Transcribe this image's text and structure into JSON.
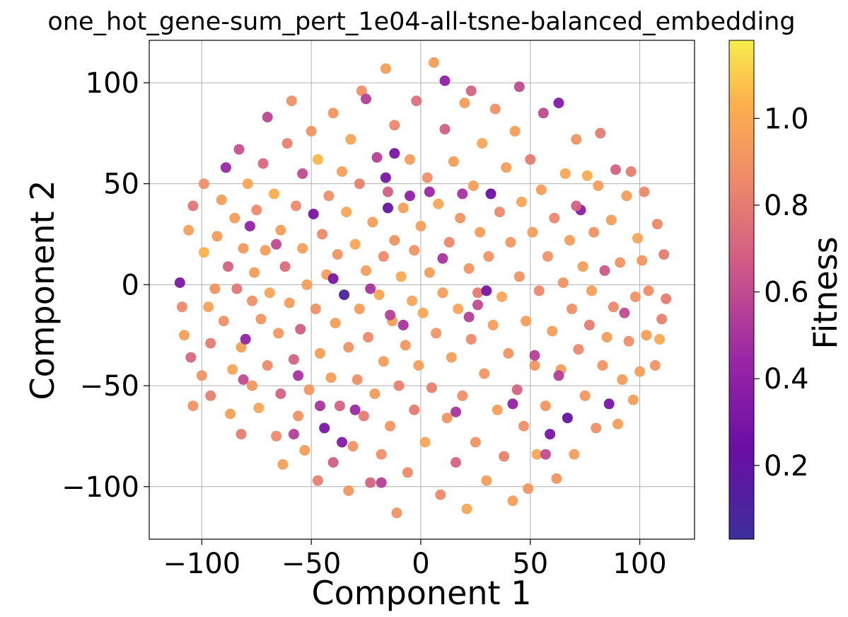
{
  "chart_data": {
    "type": "scatter",
    "title": "one_hot_gene-sum_pert_1e04-all-tsne-balanced_embedding",
    "xlabel": "Component 1",
    "ylabel": "Component 2",
    "xlim": [
      -124,
      125
    ],
    "ylim": [
      -126,
      121
    ],
    "xticks": [
      -100,
      -50,
      0,
      50,
      100
    ],
    "xtick_labels": [
      "−100",
      "−50",
      "0",
      "50",
      "100"
    ],
    "yticks": [
      -100,
      -50,
      0,
      50,
      100
    ],
    "ytick_labels": [
      "−100",
      "−50",
      "0",
      "50",
      "100"
    ],
    "grid": true,
    "colormap": "plasma",
    "color_range": [
      0.03,
      1.18
    ],
    "colorbar": {
      "label": "Fitness",
      "ticks": [
        0.2,
        0.4,
        0.6,
        0.8,
        1.0
      ],
      "tick_labels": [
        "0.2",
        "0.4",
        "0.6",
        "0.8",
        "1.0"
      ]
    },
    "points": [
      [
        -110,
        1,
        0.32
      ],
      [
        -109,
        -11,
        0.85
      ],
      [
        -108,
        -25,
        0.96
      ],
      [
        -105,
        -36,
        0.72
      ],
      [
        -104,
        -60,
        0.9
      ],
      [
        -106,
        27,
        0.96
      ],
      [
        -104,
        39,
        0.78
      ],
      [
        -100,
        -45,
        0.9
      ],
      [
        -99,
        16,
        1.04
      ],
      [
        -99,
        50,
        0.88
      ],
      [
        -97,
        -11,
        0.97
      ],
      [
        -96,
        -29,
        0.8
      ],
      [
        -96,
        -55,
        0.82
      ],
      [
        -94,
        -2,
        0.9
      ],
      [
        -93,
        24,
        0.95
      ],
      [
        -91,
        42,
        0.95
      ],
      [
        -90,
        -18,
        0.88
      ],
      [
        -89,
        58,
        0.45
      ],
      [
        -88,
        9,
        0.7
      ],
      [
        -87,
        -64,
        0.96
      ],
      [
        -86,
        -42,
        0.98
      ],
      [
        -85,
        33,
        0.95
      ],
      [
        -84,
        -2,
        0.78
      ],
      [
        -83,
        67,
        0.62
      ],
      [
        -82,
        -31,
        0.96
      ],
      [
        -82,
        -74,
        0.8
      ],
      [
        -81,
        18,
        0.93
      ],
      [
        -80,
        -27,
        0.42
      ],
      [
        -79,
        50,
        0.98
      ],
      [
        -78,
        29,
        0.42
      ],
      [
        -77,
        -8,
        0.88
      ],
      [
        -77,
        -50,
        0.92
      ],
      [
        -76,
        6,
        0.95
      ],
      [
        -75,
        37,
        0.86
      ],
      [
        -74,
        -61,
        0.98
      ],
      [
        -73,
        -17,
        0.92
      ],
      [
        -72,
        60,
        0.72
      ],
      [
        -71,
        17,
        0.95
      ],
      [
        -70,
        -40,
        0.86
      ],
      [
        -70,
        83,
        0.58
      ],
      [
        -69,
        -4,
        0.98
      ],
      [
        -67,
        45,
        1.02
      ],
      [
        -66,
        -75,
        0.85
      ],
      [
        -65,
        -24,
        0.92
      ],
      [
        -64,
        27,
        0.95
      ],
      [
        -64,
        -54,
        0.7
      ],
      [
        -63,
        -89,
        0.96
      ],
      [
        -62,
        9,
        0.74
      ],
      [
        -61,
        70,
        0.82
      ],
      [
        -60,
        -9,
        0.95
      ],
      [
        -59,
        91,
        0.88
      ],
      [
        -58,
        -37,
        0.7
      ],
      [
        -57,
        39,
        0.86
      ],
      [
        -56,
        -65,
        0.9
      ],
      [
        -55,
        -22,
        0.68
      ],
      [
        -54,
        55,
        0.6
      ],
      [
        -54,
        18,
        0.96
      ],
      [
        -53,
        -82,
        0.95
      ],
      [
        -52,
        0,
        0.95
      ],
      [
        -51,
        -52,
        0.92
      ],
      [
        -50,
        76,
        0.9
      ],
      [
        -49,
        35,
        0.3
      ],
      [
        -48,
        -12,
        0.88
      ],
      [
        -47,
        -97,
        0.82
      ],
      [
        -47,
        62,
        1.05
      ],
      [
        -46,
        -34,
        0.95
      ],
      [
        -45,
        25,
        0.85
      ],
      [
        -44,
        -71,
        0.3
      ],
      [
        -43,
        5,
        0.95
      ],
      [
        -42,
        44,
        0.88
      ],
      [
        -41,
        -46,
        0.95
      ],
      [
        -40,
        -88,
        0.68
      ],
      [
        -40,
        85,
        0.92
      ],
      [
        -39,
        -19,
        0.95
      ],
      [
        -38,
        15,
        0.9
      ],
      [
        -37,
        -60,
        0.7
      ],
      [
        -36,
        56,
        0.95
      ],
      [
        -35,
        -5,
        0.1
      ],
      [
        -34,
        36,
        0.98
      ],
      [
        -33,
        -31,
        0.9
      ],
      [
        -33,
        -102,
        0.92
      ],
      [
        -32,
        72,
        0.98
      ],
      [
        -31,
        -80,
        0.9
      ],
      [
        -30,
        20,
        0.98
      ],
      [
        -29,
        -47,
        0.88
      ],
      [
        -28,
        -12,
        0.95
      ],
      [
        -28,
        50,
        0.82
      ],
      [
        -27,
        96,
        0.88
      ],
      [
        -26,
        -65,
        0.8
      ],
      [
        -25,
        7,
        0.95
      ],
      [
        -24,
        -26,
        0.86
      ],
      [
        -23,
        -98,
        0.7
      ],
      [
        -22,
        31,
        0.96
      ],
      [
        -21,
        -54,
        0.94
      ],
      [
        -20,
        63,
        0.55
      ],
      [
        -19,
        -5,
        0.98
      ],
      [
        -18,
        -84,
        0.88
      ],
      [
        -17,
        14,
        0.86
      ],
      [
        -17,
        -38,
        0.95
      ],
      [
        -16,
        107,
        0.95
      ],
      [
        -15,
        46,
        0.68
      ],
      [
        -14,
        -70,
        0.92
      ],
      [
        -13,
        -18,
        0.95
      ],
      [
        -12,
        22,
        0.9
      ],
      [
        -12,
        79,
        0.85
      ],
      [
        -11,
        -113,
        0.9
      ],
      [
        -10,
        -50,
        0.82
      ],
      [
        -9,
        4,
        1.0
      ],
      [
        -8,
        38,
        0.95
      ],
      [
        -7,
        -30,
        0.92
      ],
      [
        -6,
        -93,
        0.86
      ],
      [
        -5,
        62,
        0.95
      ],
      [
        -4,
        -8,
        0.98
      ],
      [
        -3,
        17,
        0.9
      ],
      [
        -3,
        -62,
        0.8
      ],
      [
        -2,
        91,
        0.75
      ],
      [
        -1,
        -40,
        0.95
      ],
      [
        0,
        29,
        0.95
      ],
      [
        1,
        -14,
        0.98
      ],
      [
        2,
        -78,
        0.98
      ],
      [
        3,
        53,
        0.88
      ],
      [
        4,
        6,
        0.95
      ],
      [
        5,
        -51,
        0.82
      ],
      [
        6,
        110,
        0.95
      ],
      [
        7,
        -24,
        0.9
      ],
      [
        8,
        40,
        0.98
      ],
      [
        9,
        -104,
        0.85
      ],
      [
        10,
        -4,
        0.95
      ],
      [
        11,
        77,
        0.68
      ],
      [
        12,
        -66,
        0.9
      ],
      [
        13,
        21,
        0.85
      ],
      [
        14,
        -36,
        0.95
      ],
      [
        15,
        61,
        0.95
      ],
      [
        16,
        -88,
        0.7
      ],
      [
        17,
        -12,
        0.98
      ],
      [
        18,
        33,
        0.9
      ],
      [
        19,
        -55,
        0.88
      ],
      [
        20,
        90,
        0.95
      ],
      [
        21,
        -111,
        0.98
      ],
      [
        22,
        8,
        0.92
      ],
      [
        23,
        -27,
        0.86
      ],
      [
        24,
        49,
        0.95
      ],
      [
        25,
        -78,
        0.9
      ],
      [
        26,
        -4,
        0.8
      ],
      [
        27,
        26,
        0.95
      ],
      [
        28,
        70,
        0.98
      ],
      [
        29,
        -44,
        0.92
      ],
      [
        30,
        -97,
        0.95
      ],
      [
        31,
        14,
        0.9
      ],
      [
        32,
        45,
        0.25
      ],
      [
        33,
        -20,
        0.95
      ],
      [
        34,
        87,
        0.88
      ],
      [
        35,
        -62,
        0.95
      ],
      [
        36,
        36,
        0.85
      ],
      [
        37,
        -6,
        0.98
      ],
      [
        38,
        -85,
        0.82
      ],
      [
        39,
        58,
        0.95
      ],
      [
        40,
        -34,
        0.9
      ],
      [
        41,
        21,
        0.92
      ],
      [
        42,
        -107,
        0.95
      ],
      [
        43,
        76,
        0.95
      ],
      [
        44,
        -52,
        0.7
      ],
      [
        45,
        4,
        0.9
      ],
      [
        46,
        41,
        0.98
      ],
      [
        47,
        -70,
        0.88
      ],
      [
        48,
        -18,
        0.95
      ],
      [
        49,
        -101,
        0.92
      ],
      [
        50,
        62,
        0.8
      ],
      [
        51,
        26,
        0.95
      ],
      [
        52,
        -40,
        0.92
      ],
      [
        53,
        -84,
        0.98
      ],
      [
        54,
        -3,
        0.85
      ],
      [
        55,
        47,
        0.95
      ],
      [
        56,
        85,
        0.6
      ],
      [
        57,
        -60,
        0.92
      ],
      [
        58,
        14,
        0.9
      ],
      [
        59,
        -74,
        0.3
      ],
      [
        60,
        -23,
        0.95
      ],
      [
        61,
        33,
        0.85
      ],
      [
        62,
        -96,
        0.9
      ],
      [
        63,
        90,
        0.35
      ],
      [
        64,
        -42,
        0.95
      ],
      [
        65,
        1,
        0.9
      ],
      [
        66,
        55,
        0.98
      ],
      [
        67,
        -66,
        0.2
      ],
      [
        68,
        22,
        0.95
      ],
      [
        69,
        -12,
        0.88
      ],
      [
        70,
        -84,
        0.95
      ],
      [
        71,
        72,
        0.9
      ],
      [
        72,
        -32,
        0.85
      ],
      [
        73,
        37,
        0.35
      ],
      [
        74,
        9,
        0.95
      ],
      [
        75,
        -55,
        0.92
      ],
      [
        76,
        54,
        1.02
      ],
      [
        77,
        -20,
        0.8
      ],
      [
        78,
        -3,
        0.95
      ],
      [
        79,
        26,
        0.9
      ],
      [
        80,
        -71,
        0.88
      ],
      [
        81,
        49,
        0.95
      ],
      [
        82,
        75,
        0.8
      ],
      [
        83,
        -40,
        0.9
      ],
      [
        84,
        7,
        0.65
      ],
      [
        85,
        -26,
        0.95
      ],
      [
        86,
        -59,
        0.3
      ],
      [
        87,
        32,
        0.95
      ],
      [
        88,
        -11,
        0.85
      ],
      [
        89,
        57,
        0.7
      ],
      [
        90,
        -69,
        0.95
      ],
      [
        91,
        11,
        0.9
      ],
      [
        92,
        -47,
        0.95
      ],
      [
        93,
        -14,
        0.6
      ],
      [
        94,
        44,
        0.95
      ],
      [
        95,
        -28,
        0.88
      ],
      [
        96,
        56,
        0.8
      ],
      [
        97,
        -57,
        0.95
      ],
      [
        98,
        -6,
        0.9
      ],
      [
        99,
        23,
        0.98
      ],
      [
        100,
        -43,
        0.95
      ],
      [
        101,
        12,
        0.92
      ],
      [
        102,
        46,
        0.85
      ],
      [
        103,
        -25,
        0.95
      ],
      [
        104,
        -3,
        0.88
      ],
      [
        107,
        -40,
        0.9
      ],
      [
        108,
        30,
        0.85
      ],
      [
        109,
        -27,
        1.0
      ],
      [
        110,
        -17,
        0.82
      ],
      [
        111,
        15,
        0.8
      ],
      [
        112,
        -7,
        0.8
      ],
      [
        -16,
        53,
        0.3
      ],
      [
        -12,
        65,
        0.3
      ],
      [
        -15,
        38,
        0.2
      ],
      [
        -40,
        3,
        0.3
      ],
      [
        -23,
        -2,
        0.5
      ],
      [
        -14,
        -15,
        0.55
      ],
      [
        -8,
        -20,
        0.5
      ],
      [
        -5,
        44,
        0.4
      ],
      [
        4,
        46,
        0.45
      ],
      [
        10,
        13,
        0.5
      ],
      [
        19,
        45,
        0.5
      ],
      [
        22,
        -16,
        0.55
      ],
      [
        26,
        -10,
        0.6
      ],
      [
        30,
        -3,
        0.3
      ],
      [
        -36,
        -78,
        0.35
      ],
      [
        -18,
        -98,
        0.55
      ],
      [
        16,
        -63,
        0.5
      ],
      [
        42,
        -59,
        0.4
      ],
      [
        52,
        -35,
        0.55
      ],
      [
        -46,
        -60,
        0.5
      ],
      [
        -58,
        -74,
        0.55
      ],
      [
        -66,
        20,
        0.6
      ],
      [
        -81,
        -47,
        0.6
      ],
      [
        -56,
        -45,
        0.5
      ],
      [
        -30,
        -62,
        0.45
      ],
      [
        -25,
        92,
        0.55
      ],
      [
        11,
        101,
        0.4
      ],
      [
        23,
        96,
        0.7
      ],
      [
        45,
        98,
        0.6
      ],
      [
        57,
        -84,
        0.6
      ],
      [
        63,
        -45,
        0.55
      ],
      [
        71,
        39,
        0.7
      ]
    ]
  }
}
